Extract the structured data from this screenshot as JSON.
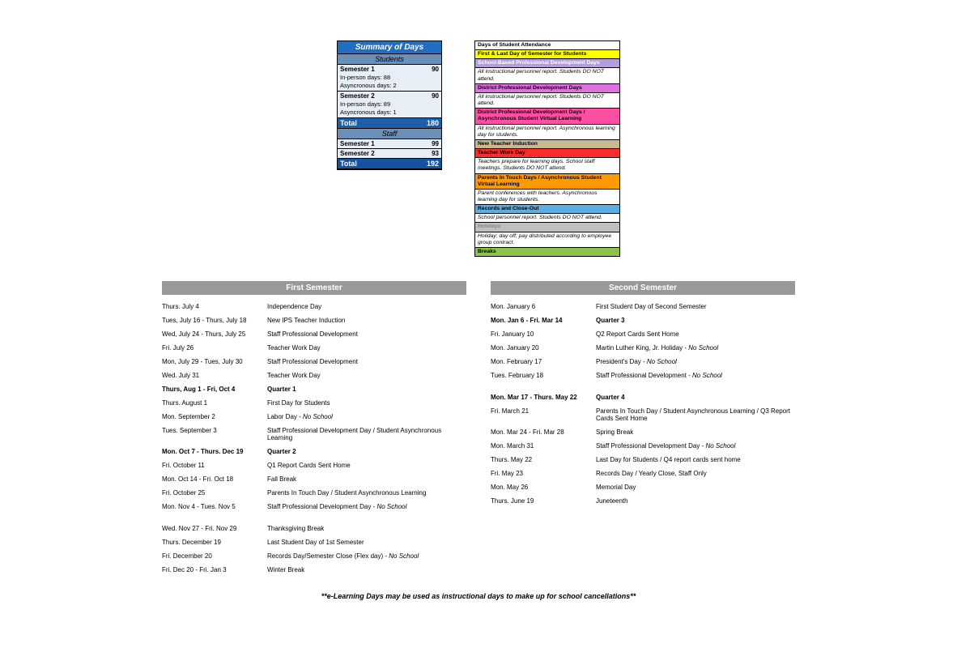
{
  "summary": {
    "title": "Summary of Days",
    "students_head": "Students",
    "staff_head": "Staff",
    "students": {
      "sem1_label": "Semester 1",
      "sem1_val": "90",
      "sem1_inperson": "In-person days: 88",
      "sem1_async": "Asyncronous days: 2",
      "sem2_label": "Semester 2",
      "sem2_val": "90",
      "sem2_inperson": "In-person days: 89",
      "sem2_async": "Asyncronous days: 1",
      "total_label": "Total",
      "total_val": "180"
    },
    "staff": {
      "sem1_label": "Semester 1",
      "sem1_val": "99",
      "sem2_label": "Semester 2",
      "sem2_val": "93",
      "total_label": "Total",
      "total_val": "192"
    }
  },
  "legend": [
    {
      "text": "Days of Student Attendance",
      "bg": "#ffffff",
      "color": "#000",
      "bold": true
    },
    {
      "text": "First & Last Day of Semester for Students",
      "bg": "#ffff00",
      "color": "#000",
      "bold": true
    },
    {
      "text": "School-Based Professional Development Days",
      "bg": "#b39ddb",
      "color": "#fff",
      "bold": true
    },
    {
      "text": "All instructional personnel report. Students DO NOT attend.",
      "bg": "#ffffff",
      "color": "#000",
      "italic": true
    },
    {
      "text": "District Professional Development Days",
      "bg": "#e070e0",
      "color": "#000",
      "bold": true
    },
    {
      "text": "All instructional personnel report. Students DO NOT attend.",
      "bg": "#ffffff",
      "color": "#000",
      "italic": true
    },
    {
      "text": "District Professional Development Days / Asynchronous Student Virtual Learning",
      "bg": "#ff4fa3",
      "color": "#000",
      "bold": true
    },
    {
      "text": "All instructional personnel report. Asynchronous learning day for students.",
      "bg": "#ffffff",
      "color": "#000",
      "italic": true
    },
    {
      "text": "New Teacher Induction",
      "bg": "#c9b98f",
      "color": "#000",
      "bold": true
    },
    {
      "text": "Teacher Work Day",
      "bg": "#ff2a2a",
      "color": "#000",
      "bold": true
    },
    {
      "text": "Teachers prepare for learning days. School staff meetings. Students DO NOT attend.",
      "bg": "#ffffff",
      "color": "#000",
      "italic": true
    },
    {
      "text": "Parents In Touch Days / Asynchronous Student Virtual Learning",
      "bg": "#ff9900",
      "color": "#000",
      "bold": true
    },
    {
      "text": "Parent conferences with teachers. Asynchronous learning day for students.",
      "bg": "#ffffff",
      "color": "#000",
      "italic": true
    },
    {
      "text": "Records and Close-Out",
      "bg": "#5dade2",
      "color": "#000",
      "bold": true
    },
    {
      "text": "School personnel report. Students DO NOT attend.",
      "bg": "#ffffff",
      "color": "#000",
      "italic": true
    },
    {
      "text": "Holidays",
      "bg": "#bfbfbf",
      "color": "#888",
      "bold": true
    },
    {
      "text": "Holiday; day off; pay distributed according to employee group contract.",
      "bg": "#ffffff",
      "color": "#000",
      "italic": true
    },
    {
      "text": "Breaks",
      "bg": "#8bc34a",
      "color": "#000",
      "bold": true
    }
  ],
  "first_semester": {
    "title": "First Semester",
    "rows": [
      {
        "date": "Thurs. July 4",
        "event": "Independence Day"
      },
      {
        "date": "Tues, July 16 - Thurs, July 18",
        "event": "New IPS Teacher Induction"
      },
      {
        "date": "Wed, July 24 - Thurs, July 25",
        "event": "Staff Professional Development"
      },
      {
        "date": "Fri. July 26",
        "event": "Teacher Work Day"
      },
      {
        "date": "Mon, July 29 - Tues, July 30",
        "event": "Staff Professional Development"
      },
      {
        "date": "Wed. July 31",
        "event": "Teacher Work Day"
      },
      {
        "date": "Thurs, Aug 1 - Fri, Oct 4",
        "event": "Quarter 1",
        "bold": true
      },
      {
        "date": "Thurs. August 1",
        "event": "First Day for Students"
      },
      {
        "date": "Mon. September 2",
        "event": "Labor Day - ",
        "tail_italic": "No School"
      },
      {
        "date": "Tues. September 3",
        "event": "Staff Professional Development Day / Student Asynchronous Learning"
      },
      {
        "date": "Mon. Oct 7 - Thurs. Dec 19",
        "event": "Quarter 2",
        "bold": true
      },
      {
        "date": "Fri. October 11",
        "event": "Q1 Report Cards Sent Home"
      },
      {
        "date": "Mon. Oct 14 - Fri. Oct 18",
        "event": "Fall Break"
      },
      {
        "date": "Fri. October 25",
        "event": "Parents In Touch Day / Student Asynchronous Learning"
      },
      {
        "date": "Mon. Nov 4 - Tues. Nov 5",
        "event": "Staff Professional Development Day - ",
        "tail_italic": "No School"
      },
      {
        "date": "Wed. Nov 27 - Fri. Nov 29",
        "event": "Thanksgiving Break",
        "gap": true
      },
      {
        "date": "Thurs. December 19",
        "event": "Last Student Day of 1st Semester"
      },
      {
        "date": "Fri. December 20",
        "event": "Records Day/Semester Close (Flex day) - ",
        "tail_italic": "No School"
      },
      {
        "date": "Fri. Dec 20 - Fri. Jan 3",
        "event": "Winter Break"
      }
    ]
  },
  "second_semester": {
    "title": "Second Semester",
    "rows": [
      {
        "date": "Mon. January 6",
        "event": "First Student Day of Second Semester"
      },
      {
        "date": "Mon. Jan 6 - Fri. Mar 14",
        "event": "Quarter 3",
        "bold": true
      },
      {
        "date": "Fri. January 10",
        "event": "Q2 Report Cards Sent Home"
      },
      {
        "date": "Mon. January 20",
        "event": "Martin Luther King, Jr. Holiday - ",
        "tail_italic": "No School"
      },
      {
        "date": "Mon. February 17",
        "event": "President's Day - ",
        "tail_italic": "No School"
      },
      {
        "date": "Tues. February 18",
        "event": "Staff Professional Development - ",
        "tail_italic": "No School"
      },
      {
        "date": "Mon. Mar 17 - Thurs. May 22",
        "event": "Quarter 4",
        "bold": true,
        "gap": true
      },
      {
        "date": "Fri. March 21",
        "event": "Parents In Touch Day / Student Asynchronous Learning / Q3 Report Cards Sent Home"
      },
      {
        "date": "Mon. Mar 24 - Fri. Mar 28",
        "event": "Spring Break"
      },
      {
        "date": "Mon. March 31",
        "event": "Staff Professional Development Day - ",
        "tail_italic": "No School"
      },
      {
        "date": "Thurs. May 22",
        "event": "Last Day for Students / Q4 report cards sent home"
      },
      {
        "date": "Fri. May 23",
        "event": "Records Day / Yearly Close, Staff Only"
      },
      {
        "date": "Mon. May 26",
        "event": "Memorial Day"
      },
      {
        "date": "Thurs. June 19",
        "event": "Juneteenth"
      }
    ]
  },
  "footnote": "**e-Learning Days may be used as instructional days to make up for school cancellations**"
}
